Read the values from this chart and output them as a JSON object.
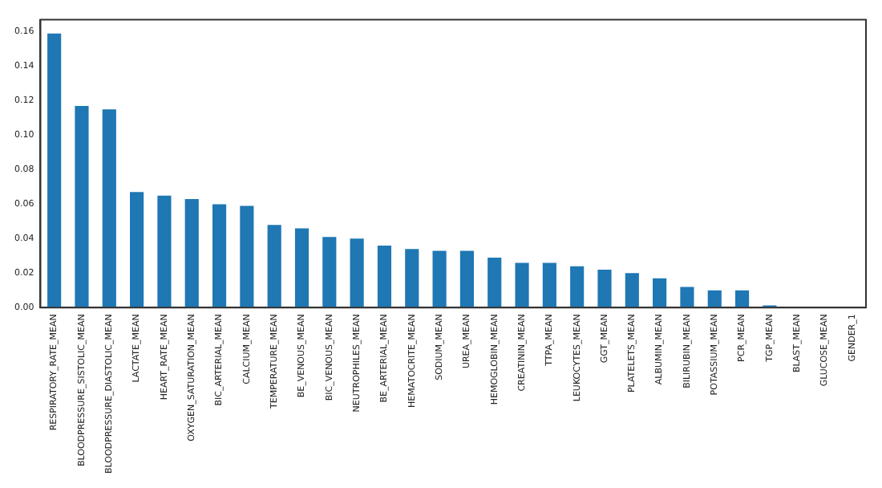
{
  "chart_data": {
    "type": "bar",
    "categories": [
      "RESPIRATORY_RATE_MEAN",
      "BLOODPRESSURE_SISTOLIC_MEAN",
      "BLOODPRESSURE_DIASTOLIC_MEAN",
      "LACTATE_MEAN",
      "HEART_RATE_MEAN",
      "OXYGEN_SATURATION_MEAN",
      "BIC_ARTERIAL_MEAN",
      "CALCIUM_MEAN",
      "TEMPERATURE_MEAN",
      "BE_VENOUS_MEAN",
      "BIC_VENOUS_MEAN",
      "NEUTROPHILES_MEAN",
      "BE_ARTERIAL_MEAN",
      "HEMATOCRITE_MEAN",
      "SODIUM_MEAN",
      "UREA_MEAN",
      "HEMOGLOBIN_MEAN",
      "CREATININ_MEAN",
      "TTPA_MEAN",
      "LEUKOCYTES_MEAN",
      "GGT_MEAN",
      "PLATELETS_MEAN",
      "ALBUMIN_MEAN",
      "BILIRUBIN_MEAN",
      "POTASSIUM_MEAN",
      "PCR_MEAN",
      "TGP_MEAN",
      "BLAST_MEAN",
      "GLUCOSE_MEAN",
      "GENDER_1"
    ],
    "values": [
      0.159,
      0.117,
      0.115,
      0.067,
      0.065,
      0.063,
      0.06,
      0.059,
      0.048,
      0.046,
      0.041,
      0.04,
      0.036,
      0.034,
      0.033,
      0.033,
      0.029,
      0.026,
      0.026,
      0.024,
      0.022,
      0.02,
      0.017,
      0.012,
      0.01,
      0.01,
      0.0013,
      0,
      0,
      0
    ],
    "color": "#1f77b4",
    "ylim": [
      0,
      0.167
    ],
    "yticks": [
      {
        "value": 0,
        "label": "0.00"
      },
      {
        "value": 0.02,
        "label": "0.02"
      },
      {
        "value": 0.04,
        "label": "0.04"
      },
      {
        "value": 0.06,
        "label": "0.06"
      },
      {
        "value": 0.08,
        "label": "0.08"
      },
      {
        "value": 0.1,
        "label": "0.10"
      },
      {
        "value": 0.12,
        "label": "0.12"
      },
      {
        "value": 0.14,
        "label": "0.14"
      },
      {
        "value": 0.16,
        "label": "0.16"
      }
    ],
    "grid": false,
    "legend": false
  }
}
